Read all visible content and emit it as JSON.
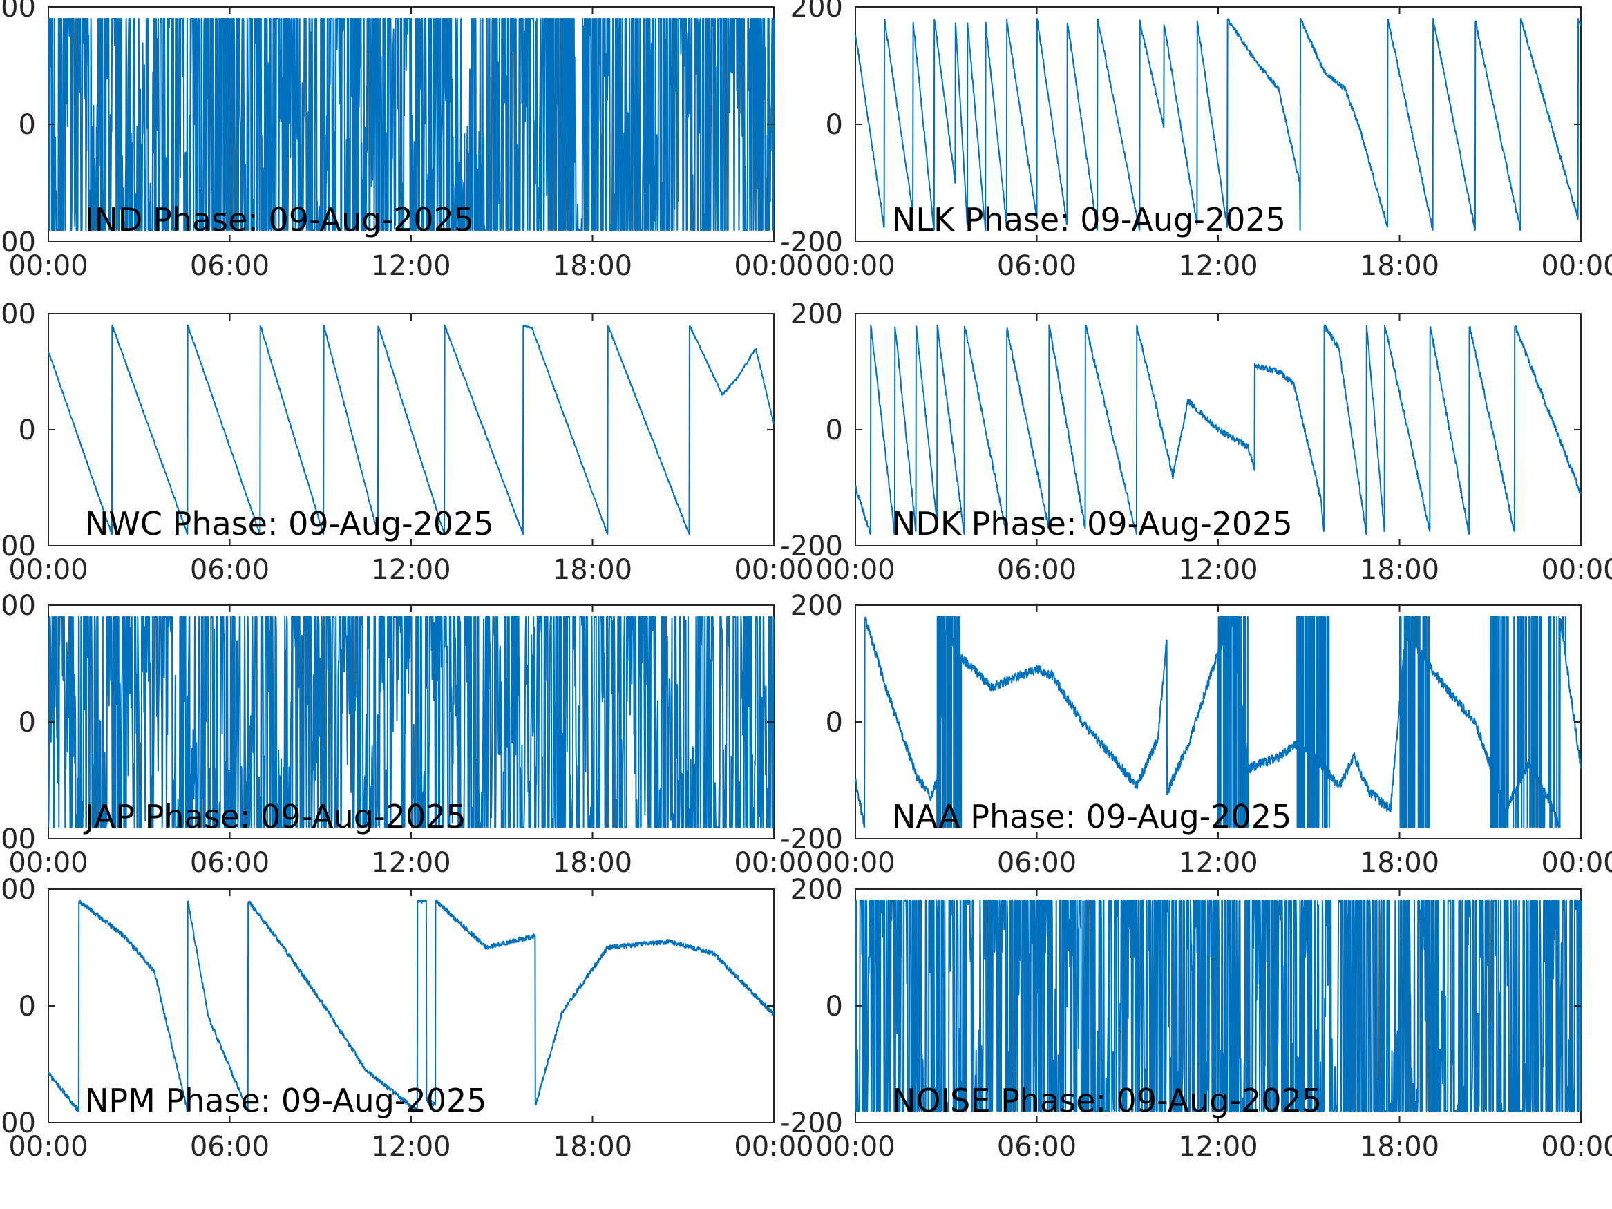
{
  "figure": {
    "date": "09-Aug-2025",
    "line_color": "#0072BD",
    "axis_color": "#262626",
    "x_tick_labels": [
      "00:00",
      "06:00",
      "12:00",
      "18:00",
      "00:00"
    ],
    "y_tick_labels": [
      "-200",
      "0",
      "200"
    ]
  },
  "chart_data": [
    {
      "type": "line",
      "title": "IND Phase: 09-Aug-2025",
      "xlabel": "",
      "ylabel": "",
      "x_range": [
        "00:00",
        "24:00"
      ],
      "ylim": [
        -200,
        200
      ],
      "grid": false,
      "series": [
        {
          "style": "noise",
          "spread": 1.0,
          "wrap_rate": 0.45,
          "seed": 11
        }
      ]
    },
    {
      "type": "line",
      "title": "NLK Phase: 09-Aug-2025",
      "xlabel": "",
      "ylabel": "",
      "x_range": [
        "00:00",
        "24:00"
      ],
      "ylim": [
        -200,
        200
      ],
      "grid": false,
      "series": [
        {
          "style": "anchors",
          "noise": 4,
          "seed": 21,
          "points": [
            [
              0,
              155
            ],
            [
              0.95,
              -175
            ],
            [
              0.96,
              180
            ],
            [
              1.9,
              -150
            ],
            [
              1.91,
              175
            ],
            [
              2.6,
              -180
            ],
            [
              2.61,
              180
            ],
            [
              3.3,
              -100
            ],
            [
              3.31,
              175
            ],
            [
              3.7,
              -170
            ],
            [
              3.71,
              175
            ],
            [
              4.3,
              -180
            ],
            [
              4.31,
              170
            ],
            [
              5.0,
              -170
            ],
            [
              5.01,
              175
            ],
            [
              6.0,
              -160
            ],
            [
              6.01,
              180
            ],
            [
              7.0,
              -170
            ],
            [
              7.01,
              175
            ],
            [
              8.0,
              -180
            ],
            [
              8.01,
              180
            ],
            [
              9.4,
              -180
            ],
            [
              9.41,
              175
            ],
            [
              10.2,
              -5
            ],
            [
              10.21,
              170
            ],
            [
              11.3,
              -170
            ],
            [
              11.31,
              175
            ],
            [
              12.3,
              -175
            ],
            [
              12.31,
              180
            ],
            [
              13.2,
              110
            ],
            [
              14.0,
              60
            ],
            [
              14.7,
              -100
            ],
            [
              14.71,
              -180
            ],
            [
              14.72,
              180
            ],
            [
              15.5,
              90
            ],
            [
              16.2,
              60
            ],
            [
              16.7,
              -10
            ],
            [
              17.6,
              -175
            ],
            [
              17.61,
              180
            ],
            [
              19.1,
              -180
            ],
            [
              19.11,
              180
            ],
            [
              20.5,
              -180
            ],
            [
              20.51,
              175
            ],
            [
              22.0,
              -180
            ],
            [
              22.01,
              180
            ],
            [
              23.9,
              -160
            ],
            [
              23.91,
              180
            ],
            [
              24,
              170
            ]
          ]
        }
      ]
    },
    {
      "type": "line",
      "title": "NWC Phase: 09-Aug-2025",
      "xlabel": "",
      "ylabel": "",
      "x_range": [
        "00:00",
        "24:00"
      ],
      "ylim": [
        -200,
        200
      ],
      "grid": false,
      "series": [
        {
          "style": "anchors",
          "noise": 2,
          "seed": 31,
          "points": [
            [
              0,
              135
            ],
            [
              2.1,
              -180
            ],
            [
              2.11,
              180
            ],
            [
              4.6,
              -180
            ],
            [
              4.61,
              180
            ],
            [
              7.0,
              -180
            ],
            [
              7.01,
              180
            ],
            [
              9.1,
              -180
            ],
            [
              9.11,
              180
            ],
            [
              10.9,
              -180
            ],
            [
              10.91,
              180
            ],
            [
              13.1,
              -180
            ],
            [
              13.11,
              180
            ],
            [
              15.7,
              -180
            ],
            [
              15.71,
              180
            ],
            [
              16.0,
              175
            ],
            [
              18.5,
              -180
            ],
            [
              18.51,
              180
            ],
            [
              21.2,
              -180
            ],
            [
              21.21,
              180
            ],
            [
              22.3,
              60
            ],
            [
              22.8,
              90
            ],
            [
              23.4,
              140
            ],
            [
              24,
              10
            ]
          ]
        }
      ]
    },
    {
      "type": "line",
      "title": "NDK Phase: 09-Aug-2025",
      "xlabel": "",
      "ylabel": "",
      "x_range": [
        "00:00",
        "24:00"
      ],
      "ylim": [
        -200,
        200
      ],
      "grid": false,
      "series": [
        {
          "style": "anchors",
          "noise": 5,
          "seed": 41,
          "points": [
            [
              0,
              -100
            ],
            [
              0.5,
              -180
            ],
            [
              0.51,
              180
            ],
            [
              1.3,
              -180
            ],
            [
              1.31,
              180
            ],
            [
              2.0,
              -175
            ],
            [
              2.01,
              180
            ],
            [
              2.7,
              -160
            ],
            [
              2.71,
              180
            ],
            [
              3.6,
              -180
            ],
            [
              3.61,
              180
            ],
            [
              5.0,
              -180
            ],
            [
              5.01,
              175
            ],
            [
              6.4,
              -170
            ],
            [
              6.41,
              180
            ],
            [
              7.6,
              -170
            ],
            [
              7.61,
              180
            ],
            [
              9.3,
              -180
            ],
            [
              9.31,
              180
            ],
            [
              10.5,
              -80
            ],
            [
              11.0,
              50
            ],
            [
              12.0,
              0
            ],
            [
              13.0,
              -30
            ],
            [
              13.2,
              -70
            ],
            [
              13.21,
              110
            ],
            [
              14.0,
              100
            ],
            [
              14.5,
              80
            ],
            [
              15.4,
              -120
            ],
            [
              15.5,
              -175
            ],
            [
              15.51,
              180
            ],
            [
              16.0,
              140
            ],
            [
              16.9,
              -180
            ],
            [
              16.91,
              180
            ],
            [
              17.5,
              -175
            ],
            [
              17.51,
              180
            ],
            [
              19.0,
              -175
            ],
            [
              19.01,
              180
            ],
            [
              20.3,
              -180
            ],
            [
              20.31,
              180
            ],
            [
              21.8,
              -175
            ],
            [
              21.81,
              180
            ],
            [
              24,
              -110
            ]
          ]
        }
      ]
    },
    {
      "type": "line",
      "title": "JAP Phase: 09-Aug-2025",
      "xlabel": "",
      "ylabel": "",
      "x_range": [
        "00:00",
        "24:00"
      ],
      "ylim": [
        -200,
        200
      ],
      "grid": false,
      "series": [
        {
          "style": "noise",
          "spread": 0.85,
          "wrap_rate": 0.35,
          "seed": 51
        }
      ]
    },
    {
      "type": "line",
      "title": "NAA Phase: 09-Aug-2025",
      "xlabel": "",
      "ylabel": "",
      "x_range": [
        "00:00",
        "24:00"
      ],
      "ylim": [
        -200,
        200
      ],
      "grid": false,
      "series": [
        {
          "style": "anchors",
          "noise": 8,
          "seed": 61,
          "dense": [
            [
              2.7,
              3.5,
              0.9
            ],
            [
              12.0,
              13.0,
              0.9
            ],
            [
              14.6,
              15.7,
              0.9
            ],
            [
              18.0,
              19.0,
              0.9
            ],
            [
              21.0,
              21.6,
              0.9
            ],
            [
              21.7,
              22.8,
              0.5
            ],
            [
              22.9,
              23.5,
              0.4
            ]
          ],
          "points": [
            [
              0,
              -100
            ],
            [
              0.3,
              -180
            ],
            [
              0.31,
              180
            ],
            [
              1.0,
              60
            ],
            [
              2.0,
              -90
            ],
            [
              2.5,
              -130
            ],
            [
              2.7,
              -100
            ],
            [
              3.0,
              160
            ],
            [
              3.5,
              110
            ],
            [
              4.5,
              60
            ],
            [
              6.0,
              90
            ],
            [
              6.5,
              80
            ],
            [
              7.5,
              0
            ],
            [
              8.5,
              -60
            ],
            [
              9.3,
              -110
            ],
            [
              10.0,
              -30
            ],
            [
              10.3,
              140
            ],
            [
              10.31,
              -120
            ],
            [
              11.0,
              -40
            ],
            [
              12.0,
              120
            ],
            [
              12.5,
              170
            ],
            [
              13.0,
              -80
            ],
            [
              14.0,
              -60
            ],
            [
              14.5,
              -40
            ],
            [
              15.0,
              -50
            ],
            [
              16.0,
              -110
            ],
            [
              16.5,
              -60
            ],
            [
              17.0,
              -120
            ],
            [
              17.7,
              -150
            ],
            [
              18.2,
              150
            ],
            [
              18.8,
              110
            ],
            [
              19.5,
              60
            ],
            [
              20.5,
              0
            ],
            [
              21.5,
              -150
            ],
            [
              22.3,
              -70
            ],
            [
              23.0,
              -140
            ],
            [
              23.3,
              -180
            ],
            [
              23.31,
              180
            ],
            [
              24,
              -80
            ]
          ]
        }
      ]
    },
    {
      "type": "line",
      "title": "NPM Phase: 09-Aug-2025",
      "xlabel": "",
      "ylabel": "",
      "x_range": [
        "00:00",
        "24:00"
      ],
      "ylim": [
        -200,
        200
      ],
      "grid": false,
      "series": [
        {
          "style": "anchors",
          "noise": 4,
          "seed": 71,
          "points": [
            [
              0,
              -115
            ],
            [
              1.0,
              -180
            ],
            [
              1.01,
              180
            ],
            [
              2.5,
              120
            ],
            [
              3.5,
              60
            ],
            [
              4.6,
              -180
            ],
            [
              4.61,
              180
            ],
            [
              5.3,
              -20
            ],
            [
              6.6,
              -180
            ],
            [
              6.61,
              180
            ],
            [
              7.5,
              120
            ],
            [
              9.0,
              10
            ],
            [
              10.5,
              -110
            ],
            [
              12.2,
              -180
            ],
            [
              12.21,
              180
            ],
            [
              12.5,
              180
            ],
            [
              12.51,
              -160
            ],
            [
              12.8,
              -170
            ],
            [
              12.81,
              180
            ],
            [
              14.5,
              100
            ],
            [
              16.1,
              120
            ],
            [
              16.11,
              -170
            ],
            [
              16.5,
              -100
            ],
            [
              17.0,
              -10
            ],
            [
              18.5,
              100
            ],
            [
              20.5,
              110
            ],
            [
              22.0,
              90
            ],
            [
              24,
              -15
            ]
          ]
        }
      ]
    },
    {
      "type": "line",
      "title": "NOISE Phase: 09-Aug-2025",
      "xlabel": "",
      "ylabel": "",
      "x_range": [
        "00:00",
        "24:00"
      ],
      "ylim": [
        -200,
        200
      ],
      "grid": false,
      "series": [
        {
          "style": "noise",
          "spread": 0.6,
          "wrap_rate": 0.5,
          "seed": 81
        }
      ]
    }
  ]
}
